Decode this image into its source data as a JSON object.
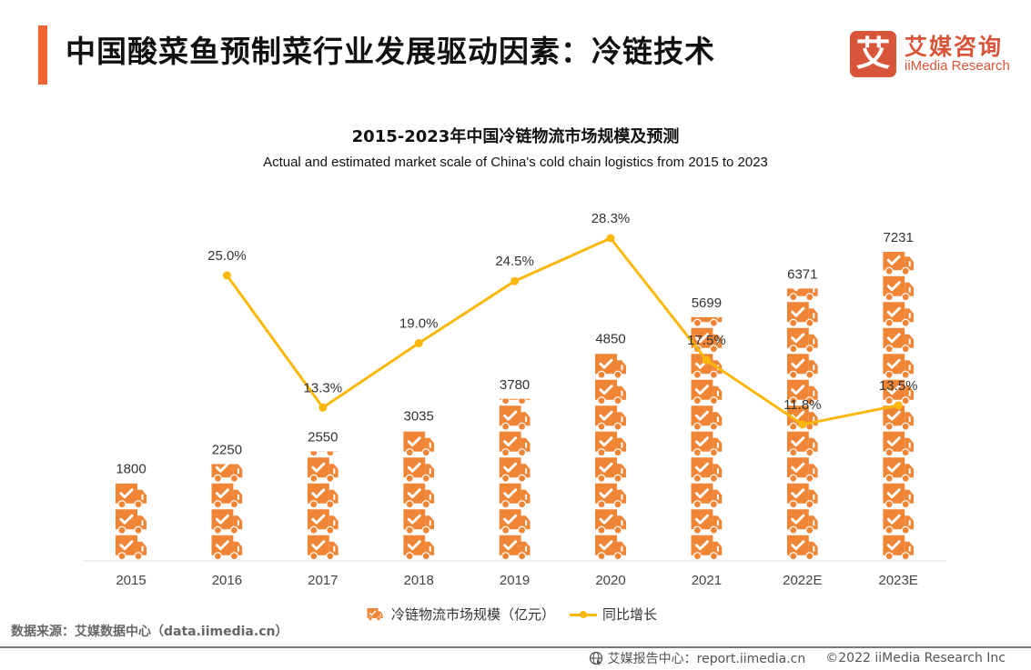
{
  "header": {
    "title": "中国酸菜鱼预制菜行业发展驱动因素：冷链技术",
    "accent_color": "#f26430"
  },
  "logo": {
    "glyph": "艾",
    "name_cn": "艾媒咨询",
    "name_en": "iiMedia Research",
    "color": "#d8553a"
  },
  "chart_data": {
    "type": "bar",
    "title": "2015-2023年中国冷链物流市场规模及预测",
    "subtitle": "Actual and estimated market scale of China's cold chain logistics from 2015 to 2023",
    "categories": [
      "2015",
      "2016",
      "2017",
      "2018",
      "2019",
      "2020",
      "2021",
      "2022E",
      "2023E"
    ],
    "series": [
      {
        "name": "冷链物流市场规模（亿元）",
        "kind": "bar",
        "color": "#f08536",
        "icon": "truck-check-icon",
        "values": [
          1800,
          2250,
          2550,
          3035,
          3780,
          4850,
          5699,
          6371,
          7231
        ],
        "labels": [
          "1800",
          "2250",
          "2550",
          "3035",
          "3780",
          "4850",
          "5699",
          "6371",
          "7231"
        ]
      },
      {
        "name": "同比增长",
        "kind": "line",
        "color": "#fbb80a",
        "values": [
          null,
          25.0,
          13.3,
          19.0,
          24.5,
          28.3,
          17.5,
          11.8,
          13.5
        ],
        "labels": [
          "",
          "25.0%",
          "13.3%",
          "19.0%",
          "24.5%",
          "28.3%",
          "17.5%",
          "11.8%",
          "13.5%"
        ]
      }
    ],
    "xlabel": "",
    "ylabel": "",
    "grid": false,
    "legend_position": "bottom"
  },
  "legend": {
    "bar_label": "冷链物流市场规模（亿元）",
    "line_label": "同比增长"
  },
  "footer": {
    "source": "数据来源：艾媒数据中心（data.iimedia.cn）",
    "report_center": "艾媒报告中心：report.iimedia.cn",
    "copyright": "©2022 iiMedia Research Inc"
  }
}
